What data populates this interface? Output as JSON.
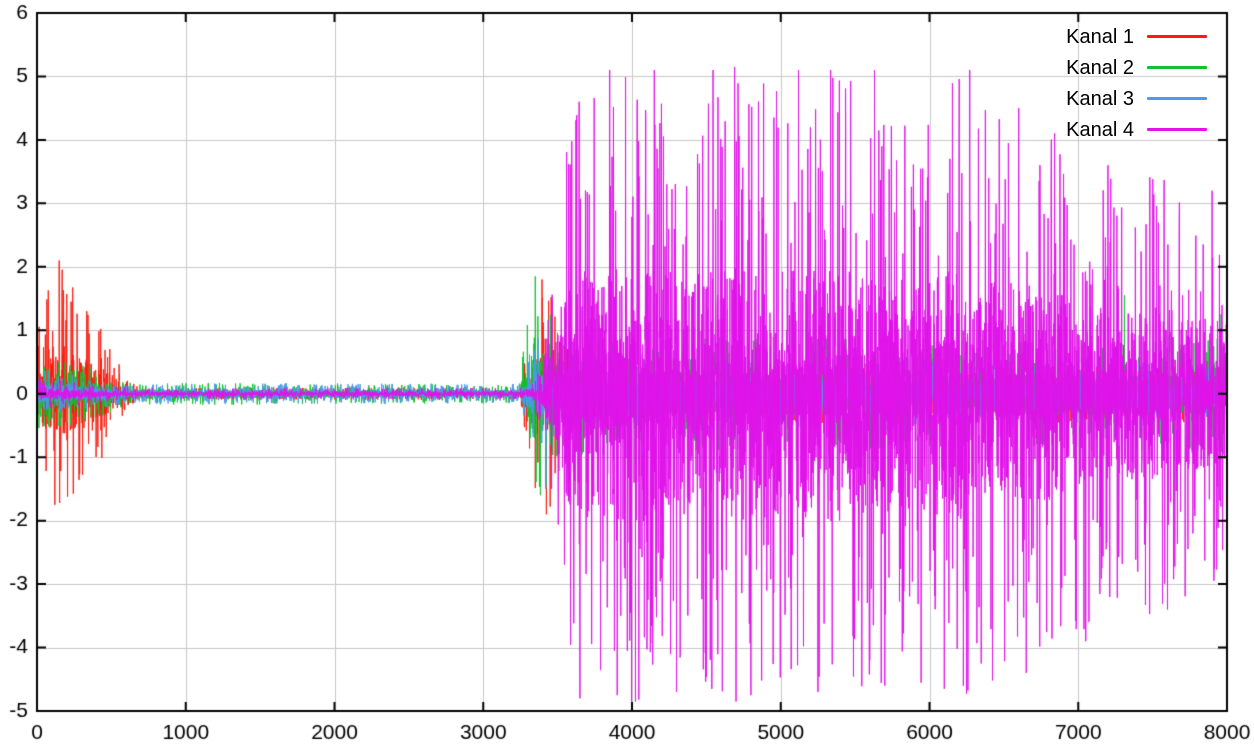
{
  "chart_data": {
    "type": "line",
    "title": "",
    "xlabel": "",
    "ylabel": "",
    "xlim": [
      0,
      8000
    ],
    "ylim": [
      -5,
      6
    ],
    "xticks": [
      0,
      1000,
      2000,
      3000,
      4000,
      5000,
      6000,
      7000,
      8000
    ],
    "yticks": [
      -5,
      -4,
      -3,
      -2,
      -1,
      0,
      1,
      2,
      3,
      4,
      5,
      6
    ],
    "grid": true,
    "grid_color": "#c8c8c8",
    "background_color": "#ffffff",
    "border_color": "#000000",
    "text_color": "#000000",
    "legend_position": "top-right",
    "samples_per_series": 6000,
    "noise_seed": 1337,
    "series": [
      {
        "name": "Kanal 1",
        "color": "#f91d10",
        "envelope": [
          [
            0,
            1.3
          ],
          [
            100,
            1.9
          ],
          [
            160,
            2.1
          ],
          [
            250,
            1.7
          ],
          [
            350,
            1.35
          ],
          [
            480,
            0.85
          ],
          [
            620,
            0.2
          ],
          [
            700,
            0.1
          ],
          [
            3240,
            0.1
          ],
          [
            3290,
            0.7
          ],
          [
            3340,
            1.5
          ],
          [
            3400,
            1.9
          ],
          [
            3470,
            1.6
          ],
          [
            3520,
            0.9
          ],
          [
            3620,
            0.5
          ],
          [
            8000,
            0.45
          ]
        ],
        "peaks": [
          [
            150,
            2.1
          ],
          [
            230,
            1.45
          ],
          [
            120,
            -1.75
          ],
          [
            205,
            -1.62
          ],
          [
            335,
            1.3
          ],
          [
            3395,
            1.8
          ],
          [
            3425,
            -1.9
          ],
          [
            3450,
            -1.78
          ]
        ]
      },
      {
        "name": "Kanal 2",
        "color": "#0fc32f",
        "envelope": [
          [
            0,
            0.55
          ],
          [
            300,
            0.5
          ],
          [
            620,
            0.18
          ],
          [
            3240,
            0.15
          ],
          [
            3300,
            1.2
          ],
          [
            3355,
            1.9
          ],
          [
            3430,
            1.5
          ],
          [
            3550,
            1.0
          ],
          [
            4200,
            0.9
          ],
          [
            6500,
            0.85
          ],
          [
            8000,
            0.95
          ]
        ],
        "peaks": [
          [
            3350,
            1.85
          ],
          [
            3385,
            -1.6
          ],
          [
            7310,
            1.55
          ],
          [
            7960,
            1.25
          ]
        ]
      },
      {
        "name": "Kanal 3",
        "color": "#4c99ee",
        "envelope": [
          [
            0,
            0.38
          ],
          [
            620,
            0.16
          ],
          [
            3240,
            0.16
          ],
          [
            3330,
            0.8
          ],
          [
            3420,
            1.0
          ],
          [
            3520,
            0.65
          ],
          [
            4200,
            0.55
          ],
          [
            8000,
            0.5
          ]
        ],
        "peaks": [
          [
            3420,
            -1.5
          ]
        ]
      },
      {
        "name": "Kanal 4",
        "color": "#e113ea",
        "envelope": [
          [
            0,
            0.27
          ],
          [
            620,
            0.09
          ],
          [
            3280,
            0.09
          ],
          [
            3400,
            0.5
          ],
          [
            3480,
            2.2
          ],
          [
            3550,
            4.3
          ],
          [
            3700,
            4.9
          ],
          [
            4100,
            5.1
          ],
          [
            4400,
            4.7
          ],
          [
            4700,
            5.05
          ],
          [
            5000,
            4.8
          ],
          [
            5300,
            5.1
          ],
          [
            5600,
            4.9
          ],
          [
            5900,
            4.5
          ],
          [
            6200,
            5.05
          ],
          [
            6500,
            4.4
          ],
          [
            6800,
            4.2
          ],
          [
            7000,
            3.8
          ],
          [
            7200,
            3.4
          ],
          [
            7500,
            3.5
          ],
          [
            7800,
            3.1
          ],
          [
            8000,
            3.0
          ]
        ],
        "peaks": [
          [
            3850,
            5.1
          ],
          [
            4150,
            5.1
          ],
          [
            4545,
            5.1
          ],
          [
            4690,
            5.15
          ],
          [
            5120,
            5.1
          ],
          [
            5335,
            5.1
          ],
          [
            5630,
            5.1
          ],
          [
            6270,
            5.1
          ],
          [
            6600,
            4.5
          ],
          [
            7200,
            3.6
          ],
          [
            7900,
            3.2
          ],
          [
            3650,
            -4.8
          ],
          [
            3900,
            -4.75
          ],
          [
            4300,
            -4.7
          ],
          [
            4800,
            -4.75
          ],
          [
            5250,
            -4.7
          ],
          [
            5700,
            -4.6
          ],
          [
            6100,
            -4.65
          ],
          [
            6650,
            -4.4
          ],
          [
            7050,
            -3.9
          ],
          [
            7600,
            -3.4
          ]
        ]
      }
    ]
  }
}
